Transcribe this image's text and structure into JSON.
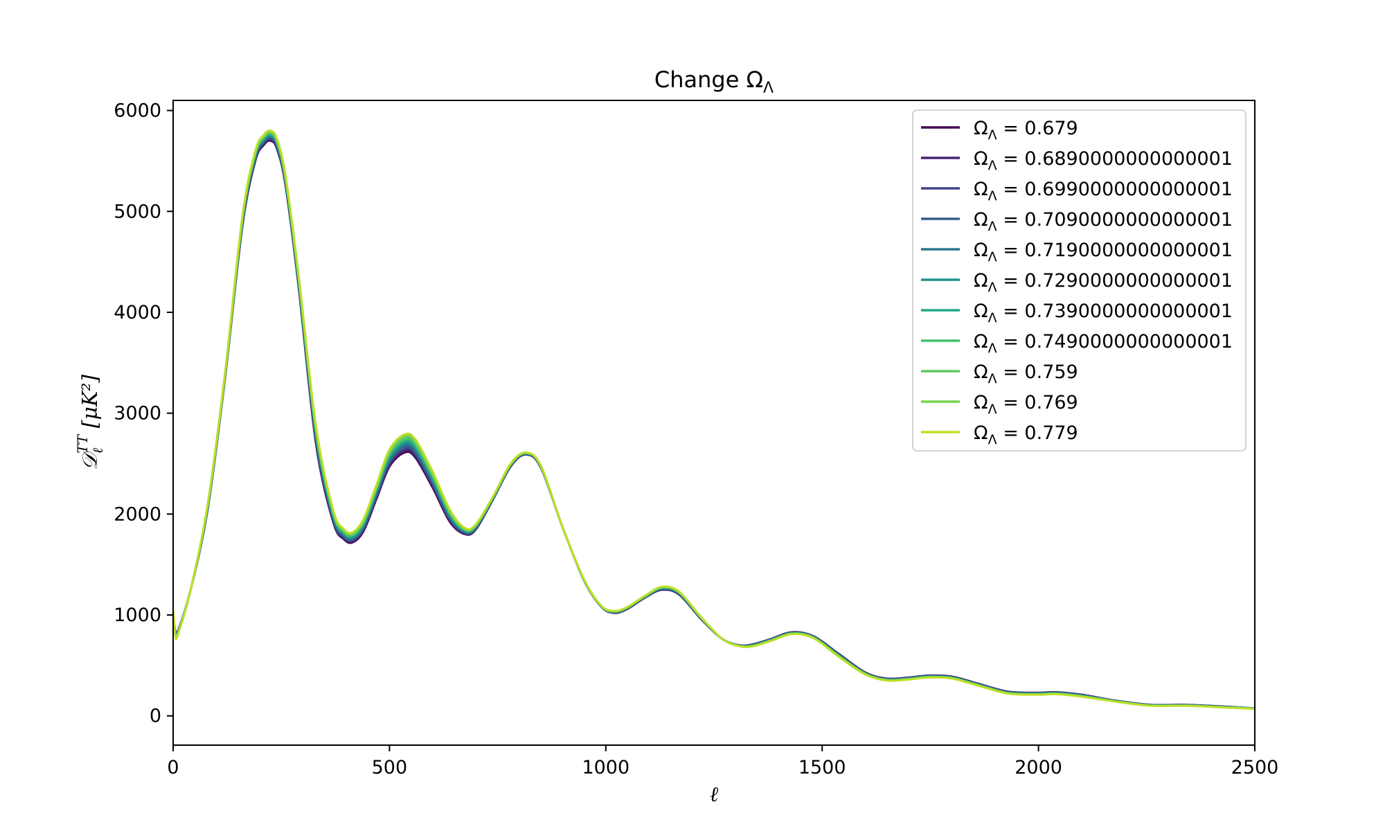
{
  "chart_data": {
    "type": "line",
    "title": "Change Ω",
    "title_sub": "Λ",
    "xlabel": "ℓ",
    "ylabel_main": "𝒟",
    "ylabel_sub": "ℓ",
    "ylabel_sup": "TT",
    "ylabel_units": " [μK²]",
    "xlim": [
      0,
      2500
    ],
    "ylim": [
      -290,
      6100
    ],
    "xticks": [
      0,
      500,
      1000,
      1500,
      2000,
      2500
    ],
    "yticks": [
      0,
      1000,
      2000,
      3000,
      4000,
      5000,
      6000
    ],
    "xtick_labels": [
      "0",
      "500",
      "1000",
      "1500",
      "2000",
      "2500"
    ],
    "ytick_labels": [
      "0",
      "1000",
      "2000",
      "3000",
      "4000",
      "5000",
      "6000"
    ],
    "legend_position": "upper right",
    "grid": false,
    "x": [
      0,
      5,
      12,
      40,
      80,
      120,
      160,
      190,
      210,
      225,
      240,
      260,
      290,
      330,
      370,
      395,
      415,
      440,
      470,
      500,
      535,
      560,
      600,
      640,
      675,
      700,
      740,
      780,
      815,
      850,
      900,
      950,
      990,
      1020,
      1050,
      1090,
      1130,
      1170,
      1220,
      1270,
      1310,
      1340,
      1380,
      1430,
      1480,
      1540,
      1600,
      1650,
      1700,
      1745,
      1800,
      1860,
      1930,
      2000,
      2040,
      2100,
      2180,
      2260,
      2340,
      2420,
      2500
    ],
    "series": [
      {
        "name": "Ω_Λ = 0.679",
        "legend_label": "0.679",
        "color": "#440154",
        "values": [
          1000,
          840,
          850,
          1240,
          2050,
          3350,
          4850,
          5500,
          5660,
          5700,
          5620,
          5250,
          4250,
          2700,
          1920,
          1750,
          1720,
          1830,
          2150,
          2470,
          2610,
          2560,
          2260,
          1920,
          1800,
          1850,
          2150,
          2470,
          2590,
          2460,
          1870,
          1340,
          1080,
          1020,
          1060,
          1170,
          1250,
          1200,
          960,
          760,
          700,
          710,
          760,
          830,
          790,
          610,
          430,
          370,
          380,
          400,
          390,
          320,
          240,
          230,
          235,
          210,
          150,
          110,
          110,
          95,
          75
        ]
      },
      {
        "name": "Ω_Λ = 0.6890000000000001",
        "legend_label": "0.6890000000000001",
        "color": "#482475",
        "values": [
          1005,
          835,
          847,
          1240,
          2055,
          3355,
          4860,
          5510,
          5670,
          5710,
          5630,
          5260,
          4262,
          2718,
          1932,
          1760,
          1730,
          1842,
          2164,
          2487,
          2628,
          2578,
          2276,
          1932,
          1806,
          1855,
          2153,
          2473,
          2592,
          2462,
          1870,
          1341,
          1081,
          1022,
          1062,
          1172,
          1253,
          1203,
          962,
          760,
          699,
          708,
          758,
          828,
          788,
          607,
          428,
          368,
          378,
          398,
          388,
          318,
          238,
          228,
          233,
          208,
          149,
          109,
          109,
          94,
          75
        ]
      },
      {
        "name": "Ω_Λ = 0.6990000000000001",
        "legend_label": "0.6990000000000001",
        "color": "#414487",
        "values": [
          1010,
          830,
          844,
          1240,
          2060,
          3360,
          4870,
          5520,
          5680,
          5720,
          5640,
          5270,
          4274,
          2736,
          1944,
          1770,
          1740,
          1854,
          2178,
          2504,
          2646,
          2596,
          2292,
          1944,
          1812,
          1860,
          2156,
          2476,
          2594,
          2464,
          1870,
          1342,
          1082,
          1024,
          1064,
          1174,
          1256,
          1206,
          964,
          760,
          698,
          706,
          756,
          826,
          786,
          604,
          426,
          366,
          376,
          396,
          386,
          316,
          236,
          226,
          231,
          206,
          148,
          108,
          108,
          93,
          74
        ]
      },
      {
        "name": "Ω_Λ = 0.7090000000000001",
        "legend_label": "0.7090000000000001",
        "color": "#355f8d",
        "values": [
          1015,
          825,
          841,
          1240,
          2065,
          3365,
          4880,
          5530,
          5690,
          5730,
          5650,
          5280,
          4286,
          2754,
          1956,
          1780,
          1750,
          1866,
          2192,
          2521,
          2664,
          2614,
          2308,
          1956,
          1818,
          1865,
          2159,
          2479,
          2596,
          2466,
          1870,
          1343,
          1083,
          1026,
          1066,
          1176,
          1259,
          1209,
          966,
          760,
          697,
          704,
          754,
          824,
          784,
          601,
          424,
          364,
          374,
          394,
          384,
          314,
          234,
          224,
          229,
          204,
          147,
          107,
          107,
          92,
          74
        ]
      },
      {
        "name": "Ω_Λ = 0.7190000000000001",
        "legend_label": "0.7190000000000001",
        "color": "#2a788e",
        "values": [
          1020,
          820,
          838,
          1240,
          2070,
          3370,
          4890,
          5540,
          5700,
          5740,
          5660,
          5290,
          4298,
          2772,
          1968,
          1790,
          1760,
          1878,
          2206,
          2538,
          2682,
          2632,
          2324,
          1968,
          1824,
          1870,
          2162,
          2482,
          2598,
          2468,
          1870,
          1344,
          1084,
          1028,
          1068,
          1178,
          1262,
          1212,
          968,
          760,
          696,
          702,
          752,
          822,
          782,
          598,
          422,
          362,
          372,
          392,
          382,
          312,
          232,
          222,
          227,
          202,
          146,
          106,
          106,
          91,
          73
        ]
      },
      {
        "name": "Ω_Λ = 0.7290000000000001",
        "legend_label": "0.7290000000000001",
        "color": "#21918c",
        "values": [
          1025,
          815,
          835,
          1240,
          2075,
          3375,
          4900,
          5550,
          5710,
          5750,
          5670,
          5300,
          4310,
          2790,
          1980,
          1800,
          1770,
          1890,
          2220,
          2555,
          2700,
          2650,
          2340,
          1980,
          1830,
          1875,
          2165,
          2485,
          2600,
          2470,
          1870,
          1345,
          1085,
          1030,
          1070,
          1180,
          1265,
          1215,
          970,
          760,
          695,
          700,
          750,
          820,
          780,
          595,
          420,
          360,
          370,
          390,
          380,
          310,
          230,
          220,
          225,
          200,
          145,
          105,
          105,
          90,
          73
        ]
      },
      {
        "name": "Ω_Λ = 0.7390000000000001",
        "legend_label": "0.7390000000000001",
        "color": "#22a884",
        "values": [
          1030,
          810,
          832,
          1240,
          2080,
          3380,
          4910,
          5560,
          5720,
          5760,
          5680,
          5310,
          4322,
          2808,
          1992,
          1810,
          1780,
          1902,
          2234,
          2572,
          2718,
          2668,
          2356,
          1992,
          1836,
          1880,
          2168,
          2488,
          2602,
          2472,
          1870,
          1346,
          1086,
          1032,
          1072,
          1182,
          1268,
          1218,
          972,
          760,
          694,
          698,
          748,
          818,
          778,
          592,
          418,
          358,
          368,
          388,
          378,
          308,
          228,
          218,
          223,
          198,
          144,
          104,
          104,
          89,
          72
        ]
      },
      {
        "name": "Ω_Λ = 0.7490000000000001",
        "legend_label": "0.7490000000000001",
        "color": "#44bf70",
        "values": [
          1035,
          805,
          829,
          1240,
          2085,
          3385,
          4920,
          5570,
          5730,
          5770,
          5690,
          5320,
          4334,
          2826,
          2004,
          1820,
          1790,
          1914,
          2248,
          2589,
          2736,
          2686,
          2372,
          2004,
          1842,
          1885,
          2171,
          2491,
          2604,
          2474,
          1870,
          1347,
          1087,
          1034,
          1074,
          1184,
          1271,
          1221,
          974,
          760,
          693,
          696,
          746,
          816,
          776,
          589,
          416,
          356,
          366,
          386,
          376,
          306,
          226,
          216,
          221,
          196,
          143,
          103,
          103,
          88,
          72
        ]
      },
      {
        "name": "Ω_Λ = 0.759",
        "legend_label": "0.759",
        "color": "#5ec962",
        "values": [
          1040,
          800,
          826,
          1240,
          2090,
          3390,
          4930,
          5580,
          5740,
          5780,
          5700,
          5330,
          4346,
          2844,
          2016,
          1830,
          1800,
          1926,
          2262,
          2606,
          2754,
          2704,
          2388,
          2016,
          1848,
          1890,
          2174,
          2494,
          2606,
          2476,
          1870,
          1348,
          1088,
          1036,
          1076,
          1186,
          1274,
          1224,
          976,
          760,
          692,
          694,
          744,
          814,
          774,
          586,
          414,
          354,
          364,
          384,
          374,
          304,
          224,
          214,
          219,
          194,
          142,
          102,
          102,
          87,
          71
        ]
      },
      {
        "name": "Ω_Λ = 0.769",
        "legend_label": "0.769",
        "color": "#7ad151",
        "values": [
          1045,
          795,
          823,
          1240,
          2095,
          3395,
          4940,
          5590,
          5750,
          5790,
          5710,
          5340,
          4358,
          2862,
          2028,
          1840,
          1810,
          1938,
          2276,
          2623,
          2772,
          2722,
          2404,
          2028,
          1854,
          1895,
          2177,
          2497,
          2608,
          2478,
          1870,
          1349,
          1089,
          1038,
          1078,
          1188,
          1277,
          1227,
          978,
          760,
          691,
          692,
          742,
          812,
          772,
          583,
          412,
          352,
          362,
          382,
          372,
          302,
          222,
          212,
          217,
          192,
          141,
          101,
          101,
          86,
          71
        ]
      },
      {
        "name": "Ω_Λ = 0.779",
        "legend_label": "0.779",
        "color": "#bddf26",
        "values": [
          1050,
          790,
          820,
          1240,
          2100,
          3400,
          4950,
          5600,
          5760,
          5800,
          5720,
          5350,
          4370,
          2880,
          2040,
          1850,
          1820,
          1950,
          2290,
          2640,
          2790,
          2740,
          2420,
          2040,
          1860,
          1900,
          2180,
          2500,
          2610,
          2480,
          1870,
          1350,
          1090,
          1040,
          1080,
          1190,
          1280,
          1230,
          980,
          760,
          690,
          690,
          740,
          810,
          770,
          580,
          410,
          350,
          360,
          380,
          370,
          300,
          220,
          210,
          215,
          190,
          140,
          100,
          100,
          85,
          70
        ]
      }
    ]
  }
}
